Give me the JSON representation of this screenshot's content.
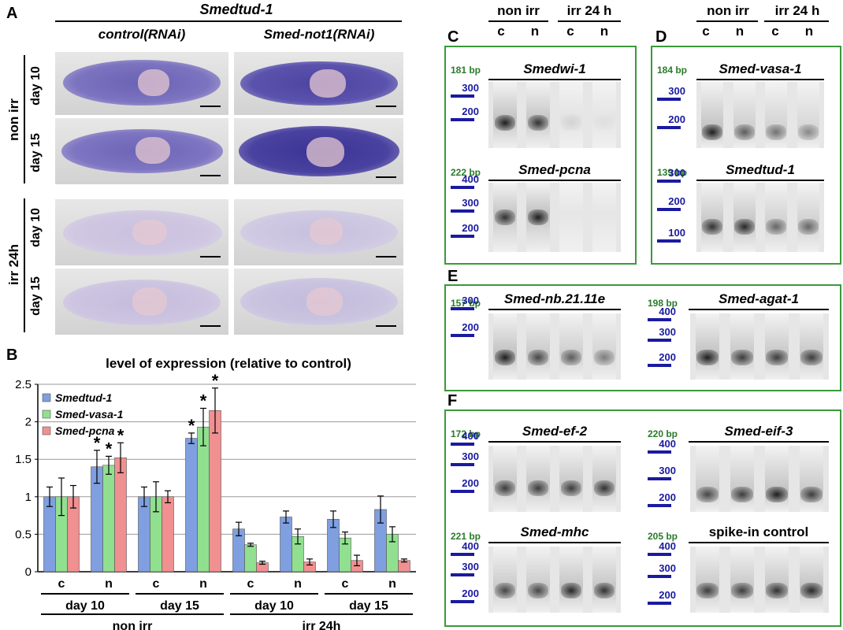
{
  "panels": {
    "a": "A",
    "b": "B",
    "c": "C",
    "d": "D",
    "e": "E",
    "f": "F"
  },
  "panelA": {
    "gene_title": "Smedtud-1",
    "col_control": "control(RNAi)",
    "col_not1": "Smed-not1(RNAi)",
    "group_nonirr": "non irr",
    "group_irr": "irr 24h",
    "day10": "day 10",
    "day15": "day 15"
  },
  "chart_data": {
    "type": "bar",
    "title": "level of expression (relative to control)",
    "ylim": [
      0,
      2.5
    ],
    "yticks": [
      "0",
      "0.5",
      "1",
      "1.5",
      "2",
      "2.5"
    ],
    "grid": true,
    "legend_position": "top-left",
    "categories": [
      "c",
      "n",
      "c",
      "n",
      "c",
      "n",
      "c",
      "n"
    ],
    "day_labels": [
      "day 10",
      "day 15",
      "day 10",
      "day 15"
    ],
    "group_labels": [
      "non irr",
      "irr 24h"
    ],
    "series": [
      {
        "name": "Smedtud-1",
        "color": "#7f9fe0",
        "values": [
          1.0,
          1.4,
          1.0,
          1.78,
          0.57,
          0.73,
          0.7,
          0.83
        ],
        "errors": [
          0.13,
          0.22,
          0.13,
          0.07,
          0.09,
          0.08,
          0.11,
          0.18
        ]
      },
      {
        "name": "Smed-vasa-1",
        "color": "#90e090",
        "values": [
          1.0,
          1.42,
          1.0,
          1.93,
          0.36,
          0.47,
          0.45,
          0.5
        ],
        "errors": [
          0.25,
          0.12,
          0.2,
          0.25,
          0.02,
          0.1,
          0.08,
          0.1
        ]
      },
      {
        "name": "Smed-pcna",
        "color": "#f09090",
        "values": [
          1.0,
          1.52,
          1.0,
          2.15,
          0.12,
          0.13,
          0.15,
          0.15
        ],
        "errors": [
          0.15,
          0.2,
          0.08,
          0.3,
          0.02,
          0.04,
          0.07,
          0.02
        ]
      }
    ],
    "significance_marker": "*"
  },
  "gels": {
    "cols": {
      "nonirr": "non irr",
      "irr": "irr 24 h",
      "c": "c",
      "n": "n"
    },
    "C1": {
      "gene": "Smedwi-1",
      "bp": "181 bp",
      "ladder": [
        "300",
        "200"
      ]
    },
    "C2": {
      "gene": "Smed-pcna",
      "bp": "222 bp",
      "ladder": [
        "400",
        "300",
        "200"
      ]
    },
    "D1": {
      "gene": "Smed-vasa-1",
      "bp": "184 bp",
      "ladder": [
        "300",
        "200"
      ]
    },
    "D2": {
      "gene": "Smedtud-1",
      "bp": "139 bp",
      "ladder": [
        "300",
        "200",
        "100"
      ]
    },
    "E1": {
      "gene": "Smed-nb.21.11e",
      "bp": "157 bp",
      "ladder": [
        "300",
        "200"
      ]
    },
    "E2": {
      "gene": "Smed-agat-1",
      "bp": "198 bp",
      "ladder": [
        "400",
        "300",
        "200"
      ]
    },
    "F1": {
      "gene": "Smed-ef-2",
      "bp": "172 bp",
      "ladder": [
        "400",
        "300",
        "200"
      ]
    },
    "F2": {
      "gene": "Smed-eif-3",
      "bp": "220 bp",
      "ladder": [
        "400",
        "300",
        "200"
      ]
    },
    "F3": {
      "gene": "Smed-mhc",
      "bp": "221 bp",
      "ladder": [
        "400",
        "300",
        "200"
      ]
    },
    "F4": {
      "gene": "spike-in control",
      "bp": "205 bp",
      "ladder": [
        "400",
        "300",
        "200"
      ]
    }
  }
}
